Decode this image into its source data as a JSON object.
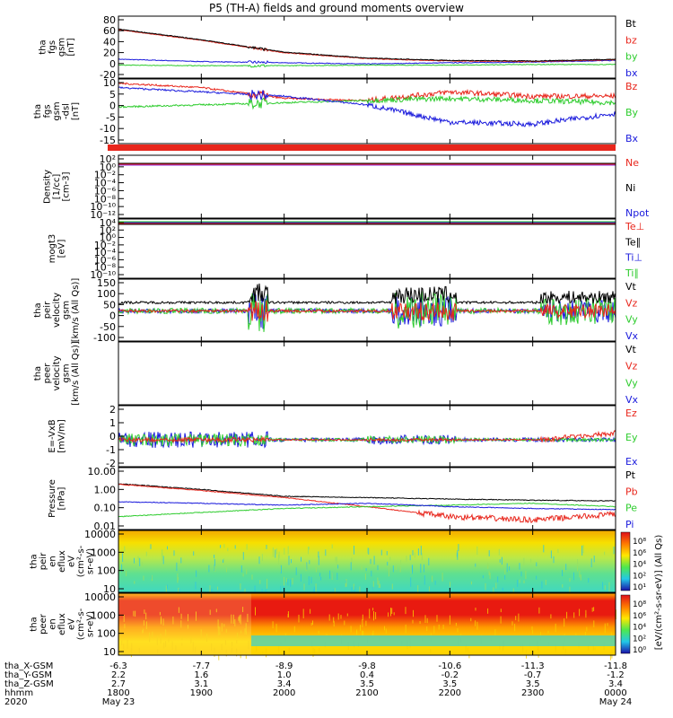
{
  "title": "P5 (TH-A) fields and ground moments overview",
  "colors": {
    "black": "#000000",
    "red": "#e8261c",
    "green": "#2ecc2e",
    "blue": "#1a1adc",
    "purple": "#8a2be2"
  },
  "panels": [
    {
      "id": "fgs_btot",
      "ylabel": [
        "tha",
        "fgs",
        "gsm",
        "[nT]"
      ],
      "ticks": [
        "80",
        "60",
        "40",
        "20",
        "0",
        "-20"
      ],
      "legend": [
        {
          "text": "Bt",
          "color": "black"
        },
        {
          "text": "bz",
          "color": "red"
        },
        {
          "text": "by",
          "color": "green"
        },
        {
          "text": "bx",
          "color": "blue"
        }
      ]
    },
    {
      "id": "fgs_comp",
      "ylabel": [
        "tha",
        "fgs",
        "gsm",
        "-dsl",
        "[nT]"
      ],
      "ticks": [
        "10",
        "5",
        "0",
        "-5",
        "-10",
        "-15"
      ],
      "legend": [
        {
          "text": "Bz",
          "color": "red"
        },
        {
          "text": "By",
          "color": "green"
        },
        {
          "text": "Bx",
          "color": "blue"
        }
      ]
    },
    {
      "id": "density",
      "ylabel": [
        "Density",
        "[1/cc]",
        "[cm-3]"
      ],
      "ticks": [
        "10²",
        "10⁰",
        "10⁻²",
        "10⁻⁴",
        "10⁻⁶",
        "10⁻⁸",
        "10⁻¹⁰",
        "10⁻¹²"
      ],
      "legend": [
        {
          "text": "Ne",
          "color": "red"
        },
        {
          "text": "Ni",
          "color": "black"
        },
        {
          "text": "Npot",
          "color": "blue"
        }
      ]
    },
    {
      "id": "temperature",
      "ylabel": [
        "mogt3",
        "[eV]"
      ],
      "ticks": [
        "10⁴",
        "10²",
        "10⁰",
        "10⁻²",
        "10⁻⁴",
        "10⁻⁶",
        "10⁻⁸",
        "10⁻¹⁰"
      ],
      "legend": [
        {
          "text": "Te⊥",
          "color": "red"
        },
        {
          "text": "Te∥",
          "color": "black"
        },
        {
          "text": "Ti⊥",
          "color": "blue"
        },
        {
          "text": "Ti∥",
          "color": "green"
        }
      ]
    },
    {
      "id": "peir_vel",
      "ylabel": [
        "tha",
        "peir",
        "velocity",
        "gsm",
        "[km/s (All Qs)]"
      ],
      "ticks": [
        "150",
        "100",
        "50",
        "0",
        "-50",
        "-100"
      ],
      "legend": [
        {
          "text": "Vt",
          "color": "black"
        },
        {
          "text": "Vz",
          "color": "red"
        },
        {
          "text": "Vy",
          "color": "green"
        },
        {
          "text": "Vx",
          "color": "blue"
        }
      ]
    },
    {
      "id": "peer_vel",
      "ylabel": [
        "tha",
        "peer",
        "velocity",
        "gsm",
        "[km/s (All Qs)]"
      ],
      "ticks": [],
      "legend": [
        {
          "text": "Vt",
          "color": "black"
        },
        {
          "text": "Vz",
          "color": "red"
        },
        {
          "text": "Vy",
          "color": "green"
        },
        {
          "text": "Vx",
          "color": "blue"
        }
      ]
    },
    {
      "id": "efield",
      "ylabel": [
        "E=-VxB",
        "[mV/m]"
      ],
      "ticks": [
        "2",
        "1",
        "0",
        "-1",
        "-2"
      ],
      "legend": [
        {
          "text": "Ez",
          "color": "red"
        },
        {
          "text": "Ey",
          "color": "green"
        },
        {
          "text": "Ex",
          "color": "blue"
        }
      ]
    },
    {
      "id": "pressure",
      "ylabel": [
        "Pressure",
        "[nPa]"
      ],
      "ticks": [
        "10.00",
        "1.00",
        "0.10",
        "0.01"
      ],
      "legend": [
        {
          "text": "Pt",
          "color": "black"
        },
        {
          "text": "Pb",
          "color": "red"
        },
        {
          "text": "Pe",
          "color": "green"
        },
        {
          "text": "Pi",
          "color": "blue"
        }
      ]
    },
    {
      "id": "peir_en",
      "ylabel": [
        "tha",
        "peir",
        "en",
        "eflux",
        "eV",
        "(cm²-s-",
        "sr-eV)"
      ],
      "ticks": [
        "10000",
        "1000",
        "100",
        "10"
      ],
      "colorbar": {
        "ticks": [
          "10⁸",
          "10⁶",
          "10⁴",
          "10²",
          "10¹"
        ],
        "label": "[eV/(cm²-s-sr-eV)] (All Qs)"
      }
    },
    {
      "id": "peer_en",
      "ylabel": [
        "tha",
        "peer",
        "en",
        "eflux",
        "eV",
        "(cm²-s-",
        "sr-eV)"
      ],
      "ticks": [
        "10000",
        "1000",
        "100",
        "10"
      ],
      "colorbar": {
        "ticks": [
          "10⁸",
          "10⁶",
          "10⁴",
          "10²",
          "10⁰"
        ],
        "label": "[eV/(cm²-s-sr-eV)] (All Qs)"
      }
    }
  ],
  "axis": {
    "row_labels": [
      "tha_X-GSM",
      "tha_Y-GSM",
      "tha_Z-GSM",
      "hhmm",
      "2020"
    ],
    "columns": [
      {
        "values": [
          "-6.3",
          "2.2",
          "2.7",
          "1800",
          "May 23"
        ]
      },
      {
        "values": [
          "-7.7",
          "1.6",
          "3.1",
          "1900",
          ""
        ]
      },
      {
        "values": [
          "-8.9",
          "1.0",
          "3.4",
          "2000",
          ""
        ]
      },
      {
        "values": [
          "-9.8",
          "0.4",
          "3.5",
          "2100",
          ""
        ]
      },
      {
        "values": [
          "-10.6",
          "-0.2",
          "3.5",
          "2200",
          ""
        ]
      },
      {
        "values": [
          "-11.3",
          "-0.7",
          "3.5",
          "2300",
          ""
        ]
      },
      {
        "values": [
          "-11.8",
          "-1.2",
          "3.4",
          "0000",
          "May 24"
        ]
      }
    ]
  },
  "chart_data": {
    "type": "line",
    "title": "P5 (TH-A) fields and ground moments overview",
    "x": [
      "1800",
      "1900",
      "2000",
      "2100",
      "2200",
      "2300",
      "0000"
    ],
    "series_fgs_btot": [
      {
        "name": "Bt",
        "values": [
          63,
          45,
          24,
          14,
          10,
          9,
          12
        ]
      },
      {
        "name": "bz",
        "values": [
          62,
          44,
          23,
          13,
          9,
          8,
          11
        ]
      },
      {
        "name": "by",
        "values": [
          2,
          1,
          1,
          2,
          2,
          3,
          3
        ]
      },
      {
        "name": "bx",
        "values": [
          12,
          8,
          6,
          4,
          6,
          7,
          10
        ]
      }
    ],
    "series_fgs_comp": [
      {
        "name": "Bz",
        "values": [
          10,
          8,
          3,
          2,
          6,
          4,
          4
        ]
      },
      {
        "name": "By",
        "values": [
          -1,
          0,
          1,
          2,
          3,
          2,
          1
        ]
      },
      {
        "name": "Bx",
        "values": [
          8,
          6,
          4,
          0,
          -8,
          -9,
          -4
        ]
      }
    ],
    "series_pressure": [
      {
        "name": "Pt",
        "values": [
          1.6,
          0.8,
          0.35,
          0.3,
          0.25,
          0.22,
          0.2
        ]
      },
      {
        "name": "Pb",
        "values": [
          1.5,
          0.7,
          0.3,
          0.1,
          0.03,
          0.02,
          0.04
        ]
      },
      {
        "name": "Pe",
        "values": [
          0.03,
          0.05,
          0.08,
          0.1,
          0.12,
          0.15,
          0.1
        ]
      },
      {
        "name": "Pi",
        "values": [
          0.18,
          0.15,
          0.12,
          0.15,
          0.1,
          0.08,
          0.07
        ]
      }
    ]
  }
}
